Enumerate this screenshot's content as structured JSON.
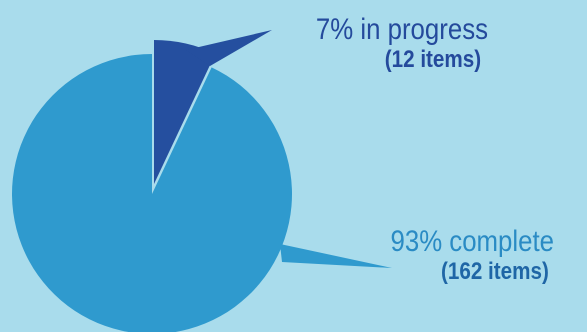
{
  "chart_data": {
    "type": "pie",
    "title": "",
    "slices": [
      {
        "label": "complete",
        "percent": 93,
        "items": 162,
        "color": "#2f9ace"
      },
      {
        "label": "in progress",
        "percent": 7,
        "items": 12,
        "color": "#254f9f"
      }
    ],
    "annotations": {
      "complete": {
        "percent_text": "93% complete",
        "items_text": "(162 items)"
      },
      "in_progress": {
        "percent_text": "7% in progress",
        "items_text": "(12 items)"
      }
    },
    "legend": "none",
    "grid": false,
    "background_color": "#a9dcec"
  }
}
